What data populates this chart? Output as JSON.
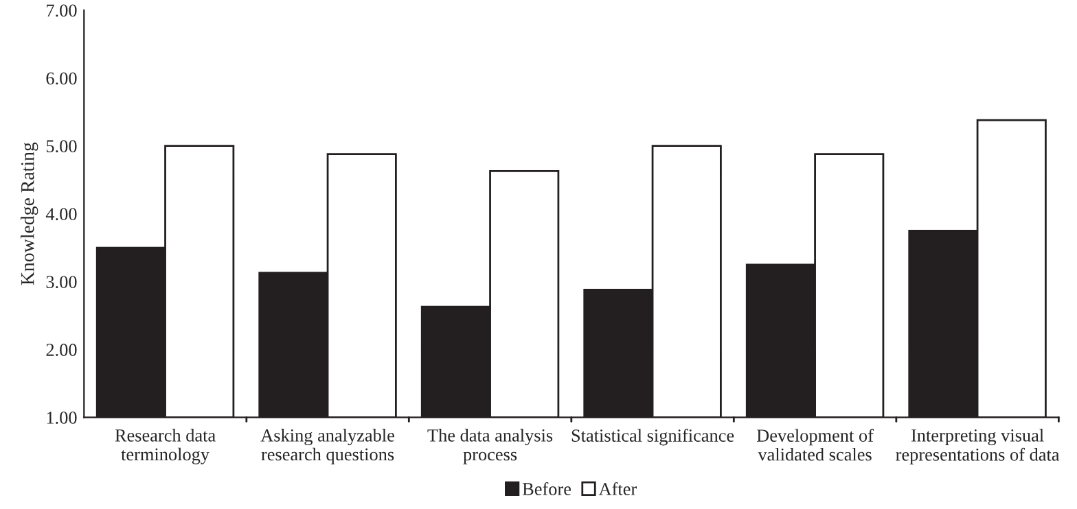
{
  "chart_data": {
    "type": "bar",
    "ylabel": "Knowledge Rating",
    "categories": [
      "Research data\nterminology",
      "Asking analyzable\nresearch questions",
      "The data analysis\nprocess",
      "Statistical significance",
      "Development of\nvalidated scales",
      "Interpreting visual\nrepresentations of data"
    ],
    "series": [
      {
        "name": "Before",
        "color": "#231f20",
        "values": [
          3.5,
          3.13,
          2.63,
          2.88,
          3.25,
          3.75
        ]
      },
      {
        "name": "After",
        "color": "#ffffff",
        "values": [
          5.0,
          4.88,
          4.63,
          5.0,
          4.88,
          5.38
        ]
      }
    ],
    "ylim": [
      1,
      7
    ],
    "yticks": [
      {
        "value": 1,
        "label": "1.00"
      },
      {
        "value": 2,
        "label": "2.00"
      },
      {
        "value": 3,
        "label": "3.00"
      },
      {
        "value": 4,
        "label": "4.00"
      },
      {
        "value": 5,
        "label": "5.00"
      },
      {
        "value": 6,
        "label": "6.00"
      },
      {
        "value": 7,
        "label": "7.00"
      }
    ],
    "grid": false,
    "legend": "bottom"
  }
}
